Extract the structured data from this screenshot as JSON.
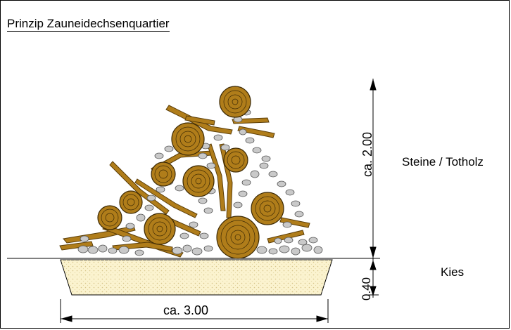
{
  "diagram": {
    "title": "Prinzip Zauneidechsenquartier",
    "layer_top_label": "Steine / Totholz",
    "layer_bottom_label": "Kies",
    "dim_width": "ca. 3.00",
    "dim_height": "ca. 2.00",
    "dim_depth": "0.40"
  },
  "colors": {
    "wood": "#b07d1a",
    "wood_dark": "#6b4a0c",
    "stone": "#c9c9c9",
    "gravel": "#fbf3cf"
  }
}
